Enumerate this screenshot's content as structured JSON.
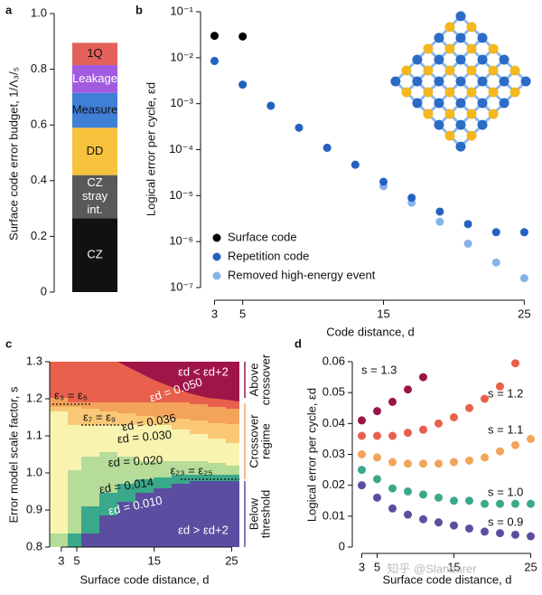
{
  "chart_data": [
    {
      "type": "stacked_bar",
      "panel": "a",
      "ylabel": "Surface code error budget, 1/Λ₃/₅",
      "ylim": [
        0,
        1
      ],
      "yticks": [
        0,
        0.2,
        0.4,
        0.6,
        0.8,
        {
          "value": 1,
          "label": "1.0"
        }
      ],
      "segments": [
        {
          "label": "CZ",
          "value": 0.265,
          "color": "#111111",
          "text_color": "#ffffff"
        },
        {
          "label": [
            "CZ",
            "stray",
            "int."
          ],
          "value": 0.155,
          "color": "#595959",
          "text_color": "#ffffff"
        },
        {
          "label": "DD",
          "value": 0.17,
          "color": "#f7c33c",
          "text_color": "#111111"
        },
        {
          "label": "Measure",
          "value": 0.125,
          "color": "#3f7fd6",
          "text_color": "#111111"
        },
        {
          "label": "Leakage",
          "value": 0.1,
          "color": "#a25be0",
          "text_color": "#ffffff"
        },
        {
          "label": "1Q",
          "value": 0.08,
          "color": "#e4605b",
          "text_color": "#111111"
        }
      ]
    },
    {
      "type": "scatter",
      "panel": "b",
      "xlabel": "Code distance, d",
      "ylabel": "Logical error per cycle, εd",
      "log_y": true,
      "legend": "lower left",
      "xlim": [
        2.2,
        26
      ],
      "xticks": [
        3,
        5,
        15,
        25
      ],
      "ylim": [
        1e-07,
        0.1
      ],
      "yticks": [
        {
          "value": 1e-07,
          "label": "10⁻⁷"
        },
        {
          "value": 1e-06,
          "label": "10⁻⁶"
        },
        {
          "value": 1e-05,
          "label": "10⁻⁵"
        },
        {
          "value": 0.0001,
          "label": "10⁻⁴"
        },
        {
          "value": 0.001,
          "label": "10⁻³"
        },
        {
          "value": 0.01,
          "label": "10⁻²"
        },
        {
          "value": 0.1,
          "label": "10⁻¹"
        }
      ],
      "series": [
        {
          "name": "Surface code",
          "color": "#000000",
          "x": [
            3,
            5
          ],
          "values": [
            0.03,
            0.029
          ]
        },
        {
          "name": "Repetition code",
          "color": "#2462c0",
          "x": [
            3,
            5,
            7,
            9,
            11,
            13,
            15,
            17,
            19,
            21,
            23,
            25
          ],
          "values": [
            0.0085,
            0.0026,
            0.0009,
            0.0003,
            0.00011,
            4.7e-05,
            2e-05,
            9e-06,
            4.5e-06,
            2.4e-06,
            1.6e-06,
            1.6e-06
          ]
        },
        {
          "name": "Removed high-energy event",
          "color": "#86b4ea",
          "x": [
            3,
            5,
            7,
            9,
            11,
            13,
            15,
            17,
            19,
            21,
            23,
            25
          ],
          "values": [
            0.0085,
            0.0026,
            0.0009,
            0.0003,
            0.00011,
            4.7e-05,
            1.6e-05,
            7e-06,
            2.7e-06,
            9e-07,
            3.5e-07,
            1.6e-07
          ]
        }
      ]
    },
    {
      "type": "region",
      "panel": "c",
      "xlabel": "Surface code distance, d",
      "ylabel": "Error model scale factor, s",
      "xlim": [
        1.5,
        26
      ],
      "xticks": [
        3,
        5,
        15,
        25
      ],
      "ylim": [
        0.8,
        1.3
      ],
      "yticks": [
        0.8,
        0.9,
        {
          "value": 1,
          "label": "1.0"
        },
        1.1,
        1.2,
        1.3
      ],
      "annotations": [
        "εd < εd+2",
        "εd = 0.050",
        "ε₃ = ε₅",
        "ε₇ = ε₉",
        "εd = 0.036",
        "εd = 0.030",
        "εd = 0.020",
        "ε₂₃ = ε₂₅",
        "εd = 0.014",
        "εd = 0.010",
        "εd > εd+2"
      ],
      "regimes": [
        [
          "Above",
          "crossover"
        ],
        [
          "Crossover",
          "regime"
        ],
        [
          "Below",
          "threshold"
        ]
      ]
    },
    {
      "type": "scatter",
      "panel": "d",
      "xlabel": "Surface code distance, d",
      "ylabel": "Logical error per cycle, εd",
      "xlim": [
        2,
        26
      ],
      "xticks": [
        3,
        5,
        15,
        25
      ],
      "ylim": [
        0,
        0.06
      ],
      "yticks": [
        0,
        0.01,
        0.02,
        0.03,
        0.04,
        0.05,
        0.06
      ],
      "series": [
        {
          "name": "s = 1.3",
          "color": "#9a1448",
          "x": [
            3,
            5,
            7,
            9,
            11
          ],
          "values": [
            0.041,
            0.044,
            0.047,
            0.051,
            0.055
          ]
        },
        {
          "name": "s = 1.2",
          "color": "#e8604c",
          "x": [
            3,
            5,
            7,
            9,
            11,
            13,
            15,
            17,
            19,
            21,
            23
          ],
          "values": [
            0.036,
            0.036,
            0.036,
            0.037,
            0.038,
            0.04,
            0.042,
            0.045,
            0.048,
            0.052,
            0.0595
          ]
        },
        {
          "name": "s = 1.1",
          "color": "#f4a35a",
          "x": [
            3,
            5,
            7,
            9,
            11,
            13,
            15,
            17,
            19,
            21,
            23,
            25
          ],
          "values": [
            0.03,
            0.029,
            0.0275,
            0.027,
            0.027,
            0.027,
            0.0275,
            0.028,
            0.029,
            0.031,
            0.033,
            0.035
          ]
        },
        {
          "name": "s = 1.0",
          "color": "#3aa88a",
          "x": [
            3,
            5,
            7,
            9,
            11,
            13,
            15,
            17,
            19,
            21,
            23,
            25
          ],
          "values": [
            0.025,
            0.022,
            0.019,
            0.018,
            0.017,
            0.016,
            0.015,
            0.015,
            0.014,
            0.014,
            0.014,
            0.014
          ]
        },
        {
          "name": "s = 0.9",
          "color": "#5b4ea0",
          "x": [
            3,
            5,
            7,
            9,
            11,
            13,
            15,
            17,
            19,
            21,
            23,
            25
          ],
          "values": [
            0.02,
            0.016,
            0.0125,
            0.0105,
            0.009,
            0.008,
            0.007,
            0.006,
            0.005,
            0.0045,
            0.004,
            0.0035
          ]
        }
      ]
    }
  ],
  "watermark": "知乎 @Slandarer"
}
